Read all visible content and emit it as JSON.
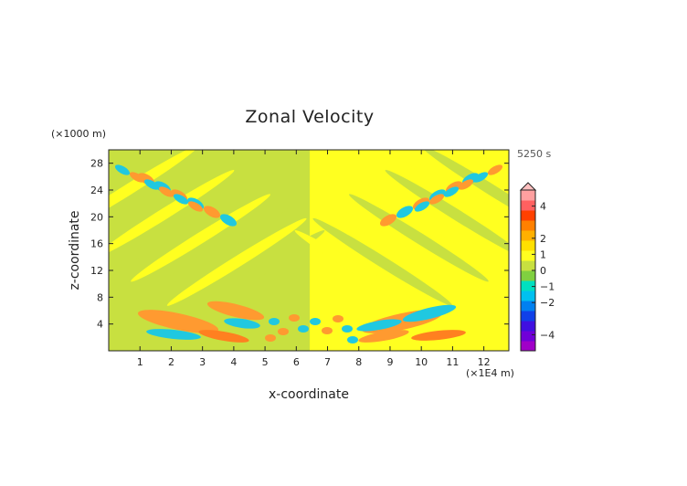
{
  "chart_data": {
    "type": "heatmap",
    "title": "Zonal Velocity",
    "xlabel": "x-coordinate",
    "ylabel": "z-coordinate",
    "x_unit_label": "(×1E4 m)",
    "y_unit_label": "(×1000 m)",
    "time_label": "5250 s",
    "xlim": [
      0,
      12.8
    ],
    "ylim": [
      0,
      30
    ],
    "x_ticks": [
      "1",
      "2",
      "3",
      "4",
      "5",
      "6",
      "7",
      "8",
      "9",
      "10",
      "11",
      "12"
    ],
    "y_ticks": [
      "4",
      "8",
      "12",
      "16",
      "20",
      "24",
      "28"
    ],
    "colorbar": {
      "tick_labels": [
        "4",
        "2",
        "1",
        "0",
        "−1",
        "−2",
        "−4"
      ],
      "tick_values": [
        4,
        2,
        1,
        0,
        -1,
        -2,
        -4
      ],
      "range": [
        -5,
        5
      ],
      "extend": "max",
      "colors": [
        "#a000c8",
        "#7000d8",
        "#4010e0",
        "#1040e8",
        "#0080f0",
        "#00c0f0",
        "#00e0c0",
        "#80d040",
        "#c8e040",
        "#ffff20",
        "#ffe000",
        "#ffb000",
        "#ff8000",
        "#ff4000",
        "#ff6060",
        "#ffa0a0"
      ]
    },
    "values_description": "Wave pattern of zonal velocity; near-zero background (yellow/green) with banded positive (orange/red) and negative (cyan/blue) lobes spreading upward from x≈6.5E4 m."
  }
}
